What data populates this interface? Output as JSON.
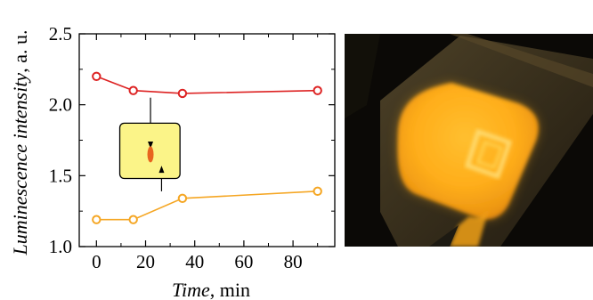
{
  "chart_data": {
    "type": "line",
    "xlabel_italic": "Time",
    "xlabel_unit": ", min",
    "ylabel_italic": "Luminescence intensity",
    "ylabel_unit": ", a. u.",
    "xlim": [
      -7,
      97
    ],
    "ylim": [
      1.0,
      2.5
    ],
    "xticks": [
      0,
      20,
      40,
      60,
      80
    ],
    "xtick_labels": [
      "0",
      "20",
      "40",
      "60",
      "80"
    ],
    "yticks": [
      1.0,
      1.5,
      2.0,
      2.5
    ],
    "ytick_labels": [
      "1.0",
      "1.5",
      "2.0",
      "2.5"
    ],
    "grid": false,
    "series": [
      {
        "color": "#dd2222",
        "x": [
          0,
          15,
          35,
          90
        ],
        "y": [
          2.2,
          2.1,
          2.08,
          2.1
        ]
      },
      {
        "color": "#f5a623",
        "x": [
          0,
          15,
          35,
          90
        ],
        "y": [
          1.19,
          1.19,
          1.34,
          1.39
        ]
      }
    ],
    "inset": {
      "fill": "#fbf488",
      "spot_color": "#e8641e"
    }
  },
  "photo": {
    "glow_color": "#ffb21c",
    "background": "#0b0906"
  }
}
